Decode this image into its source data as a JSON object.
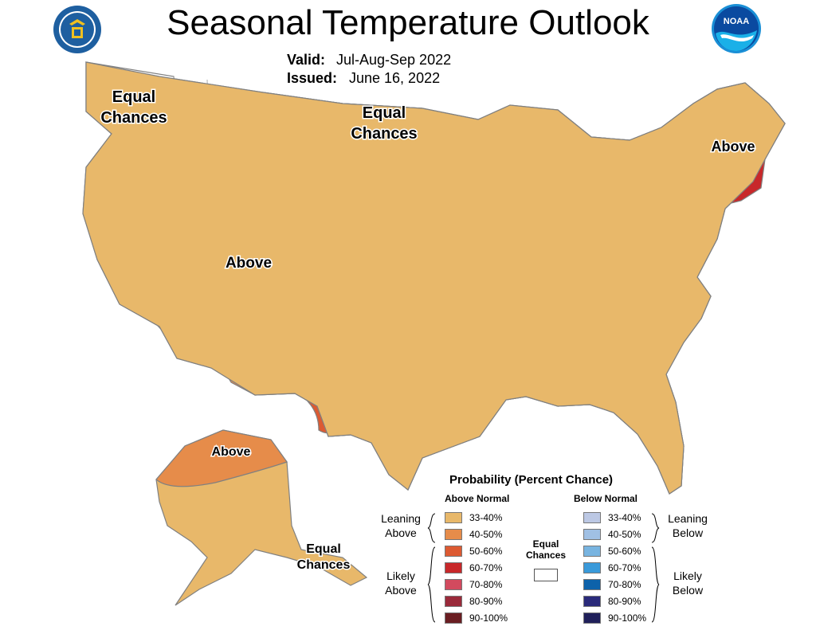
{
  "title": "Seasonal Temperature Outlook",
  "valid_label": "Valid:",
  "valid_value": "Jul-Aug-Sep 2022",
  "issued_label": "Issued:",
  "issued_value": "June 16, 2022",
  "logos": {
    "left": "department-of-commerce-seal",
    "right": "noaa-logo",
    "right_text": "NOAA"
  },
  "map_labels": {
    "equal_chances_nw": [
      "Equal",
      "Chances"
    ],
    "equal_chances_north": [
      "Equal",
      "Chances"
    ],
    "above_west": "Above",
    "above_northeast": "Above",
    "above_alaska": "Above",
    "equal_chances_alaska": [
      "Equal",
      "Chances"
    ]
  },
  "colors": {
    "above_33_40": "#e8b86a",
    "above_40_50": "#e68c4a",
    "above_50_60": "#dc5a32",
    "above_60_70": "#c8282a",
    "above_70_80": "#d24a5e",
    "above_80_90": "#9a2a3a",
    "above_90_100": "#6a1e22",
    "below_33_40": "#bcc8e4",
    "below_40_50": "#a0c0e4",
    "below_50_60": "#78b4e0",
    "below_60_70": "#3a9ada",
    "below_70_80": "#0d62aa",
    "below_80_90": "#2a2a7a",
    "below_90_100": "#20205a",
    "equal_chances": "#ffffff",
    "border": "#808080"
  },
  "legend": {
    "title": "Probability (Percent Chance)",
    "above_header": "Above Normal",
    "below_header": "Below Normal",
    "above": [
      {
        "range": "33-40%",
        "color": "#e8b86a"
      },
      {
        "range": "40-50%",
        "color": "#e68c4a"
      },
      {
        "range": "50-60%",
        "color": "#dc5a32"
      },
      {
        "range": "60-70%",
        "color": "#c8282a"
      },
      {
        "range": "70-80%",
        "color": "#d24a5e"
      },
      {
        "range": "80-90%",
        "color": "#9a2a3a"
      },
      {
        "range": "90-100%",
        "color": "#6a1e22"
      }
    ],
    "below": [
      {
        "range": "33-40%",
        "color": "#bcc8e4"
      },
      {
        "range": "40-50%",
        "color": "#a0c0e4"
      },
      {
        "range": "50-60%",
        "color": "#78b4e0"
      },
      {
        "range": "60-70%",
        "color": "#3a9ada"
      },
      {
        "range": "70-80%",
        "color": "#0d62aa"
      },
      {
        "range": "80-90%",
        "color": "#2a2a7a"
      },
      {
        "range": "90-100%",
        "color": "#20205a"
      }
    ],
    "leaning_above": [
      "Leaning",
      "Above"
    ],
    "likely_above": [
      "Likely",
      "Above"
    ],
    "leaning_below": [
      "Leaning",
      "Below"
    ],
    "likely_below": [
      "Likely",
      "Below"
    ],
    "equal_chances": [
      "Equal",
      "Chances"
    ]
  }
}
